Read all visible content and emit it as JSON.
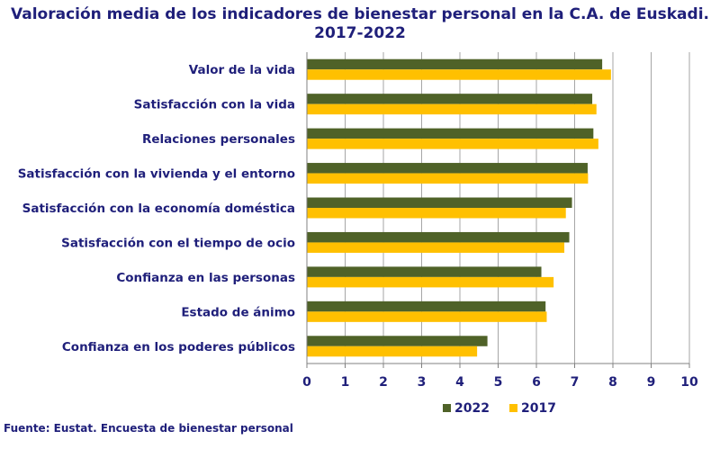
{
  "chart_data": {
    "type": "bar",
    "orientation": "horizontal",
    "title_line1": "Valoración media de los indicadores de bienestar personal en la C.A. de Euskadi.",
    "title_line2": "2017-2022",
    "categories": [
      "Valor de la vida",
      "Satisfacción con la vida",
      "Relaciones personales",
      "Satisfacción con la vivienda y el entorno",
      "Satisfacción con la economía doméstica",
      "Satisfacción con el tiempo de ocio",
      "Confianza en las personas",
      "Estado de ánimo",
      "Confianza en los poderes públicos"
    ],
    "series": [
      {
        "name": "2022",
        "color": "#4f6228",
        "values": [
          7.72,
          7.46,
          7.49,
          7.34,
          6.93,
          6.86,
          6.13,
          6.24,
          4.72
        ]
      },
      {
        "name": "2017",
        "color": "#ffc000",
        "values": [
          7.95,
          7.57,
          7.62,
          7.35,
          6.77,
          6.73,
          6.45,
          6.27,
          4.45
        ]
      }
    ],
    "xlim": [
      0,
      10
    ],
    "xticks": [
      0,
      1,
      2,
      3,
      4,
      5,
      6,
      7,
      8,
      9,
      10
    ],
    "grid": true,
    "legend": "bottom",
    "source": "Fuente: Eustat. Encuesta de bienestar personal"
  }
}
